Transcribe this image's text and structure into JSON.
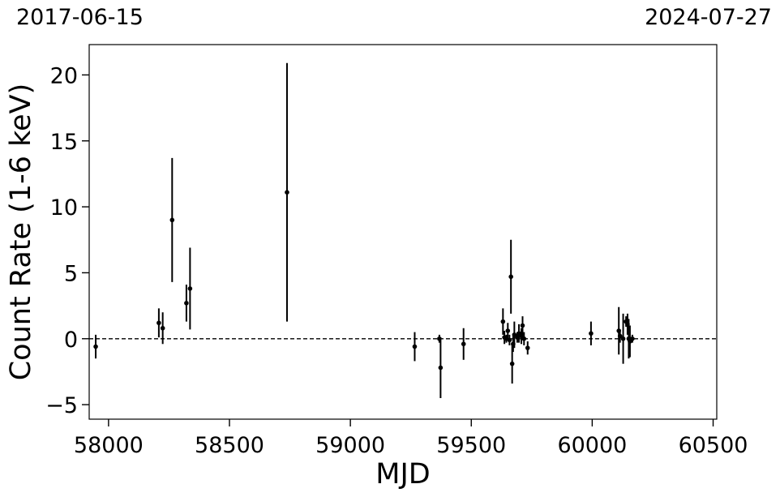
{
  "dates": {
    "left": "2017-06-15",
    "right": "2024-07-27"
  },
  "chart_data": {
    "type": "scatter",
    "xlabel": "MJD",
    "ylabel": "Count Rate (1-6 keV)",
    "xlim": [
      57920,
      60515
    ],
    "ylim": [
      -6.1,
      22.3
    ],
    "xticks": [
      58000,
      58500,
      59000,
      59500,
      60000,
      60500
    ],
    "xtick_labels": [
      "58000",
      "58500",
      "59000",
      "59500",
      "60000",
      "60500"
    ],
    "yticks": [
      -5,
      0,
      5,
      10,
      15,
      20
    ],
    "ytick_labels": [
      "−5",
      "0",
      "5",
      "10",
      "15",
      "20"
    ],
    "reference_line": {
      "y": 0,
      "style": "dashed"
    },
    "grid": false,
    "colors": {
      "points": "#000000",
      "line": "#000000"
    },
    "points": [
      {
        "x": 57947,
        "y": -0.6,
        "err": 0.9
      },
      {
        "x": 58208,
        "y": 1.2,
        "err": 1.1
      },
      {
        "x": 58224,
        "y": 0.8,
        "err": 1.2
      },
      {
        "x": 58263,
        "y": 9.0,
        "err": 4.7
      },
      {
        "x": 58322,
        "y": 2.7,
        "err": 1.4
      },
      {
        "x": 58337,
        "y": 3.8,
        "err": 3.1
      },
      {
        "x": 58738,
        "y": 11.1,
        "err": 9.8
      },
      {
        "x": 59266,
        "y": -0.6,
        "err": 1.1
      },
      {
        "x": 59368,
        "y": 0.0,
        "err": 0.3
      },
      {
        "x": 59373,
        "y": -2.2,
        "err": 2.3
      },
      {
        "x": 59468,
        "y": -0.4,
        "err": 1.2
      },
      {
        "x": 59631,
        "y": 1.3,
        "err": 1.0
      },
      {
        "x": 59637,
        "y": 0.1,
        "err": 0.5
      },
      {
        "x": 59645,
        "y": 0.0,
        "err": 0.3
      },
      {
        "x": 59651,
        "y": 0.6,
        "err": 0.6
      },
      {
        "x": 59658,
        "y": -0.1,
        "err": 0.4
      },
      {
        "x": 59664,
        "y": 4.7,
        "err": 2.8
      },
      {
        "x": 59669,
        "y": -1.9,
        "err": 1.5
      },
      {
        "x": 59673,
        "y": -0.4,
        "err": 0.6
      },
      {
        "x": 59678,
        "y": 0.3,
        "err": 1.0
      },
      {
        "x": 59690,
        "y": 0.1,
        "err": 0.4
      },
      {
        "x": 59697,
        "y": 0.4,
        "err": 0.7
      },
      {
        "x": 59707,
        "y": 0.2,
        "err": 0.6
      },
      {
        "x": 59712,
        "y": 1.0,
        "err": 0.7
      },
      {
        "x": 59718,
        "y": 0.0,
        "err": 0.5
      },
      {
        "x": 59733,
        "y": -0.7,
        "err": 0.5
      },
      {
        "x": 59995,
        "y": 0.4,
        "err": 0.9
      },
      {
        "x": 60110,
        "y": 0.6,
        "err": 1.8
      },
      {
        "x": 60115,
        "y": 0.2,
        "err": 0.5
      },
      {
        "x": 60128,
        "y": 0.0,
        "err": 1.9
      },
      {
        "x": 60140,
        "y": 1.3,
        "err": 0.4
      },
      {
        "x": 60146,
        "y": 1.1,
        "err": 0.8
      },
      {
        "x": 60151,
        "y": 0.0,
        "err": 1.5
      },
      {
        "x": 60156,
        "y": -0.2,
        "err": 1.2
      },
      {
        "x": 60166,
        "y": 0.0,
        "err": 0.3
      }
    ]
  }
}
